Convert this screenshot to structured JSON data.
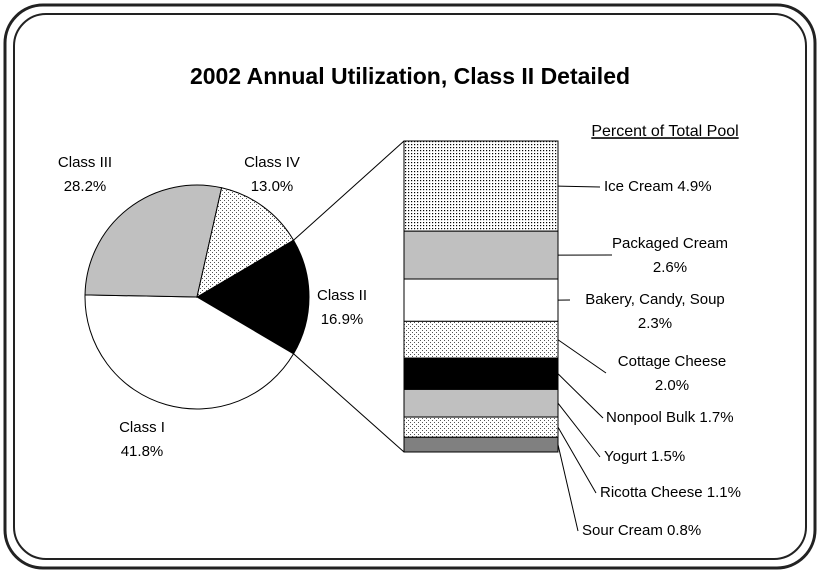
{
  "chart_data": [
    {
      "type": "pie",
      "title": "2002 Annual Utilization, Class II Detailed",
      "categories": [
        "Class II",
        "Class I",
        "Class III",
        "Class IV"
      ],
      "values": [
        16.9,
        41.8,
        28.2,
        13.0
      ],
      "value_labels": [
        "16.9%",
        "41.8%",
        "28.2%",
        "13.0%"
      ],
      "colors": [
        "#000000",
        "#ffffff",
        "#c0c0c0",
        "dots-light"
      ]
    },
    {
      "type": "stacked-bar",
      "title": "Percent of Total Pool",
      "categories": [
        "Ice Cream",
        "Packaged Cream",
        "Bakery, Candy, Soup",
        "Cottage Cheese",
        "Nonpool Bulk",
        "Yogurt",
        "Ricotta Cheese",
        "Sour Cream"
      ],
      "values": [
        4.9,
        2.6,
        2.3,
        2.0,
        1.7,
        1.5,
        1.1,
        0.8
      ],
      "value_labels": [
        "4.9%",
        "2.6%",
        "2.3%",
        "2.0%",
        "1.7%",
        "1.5%",
        "1.1%",
        "0.8%"
      ],
      "colors": [
        "dots-dense",
        "#c0c0c0",
        "#ffffff",
        "dots-light",
        "#000000",
        "#c0c0c0",
        "dots-light",
        "#808080"
      ]
    }
  ]
}
